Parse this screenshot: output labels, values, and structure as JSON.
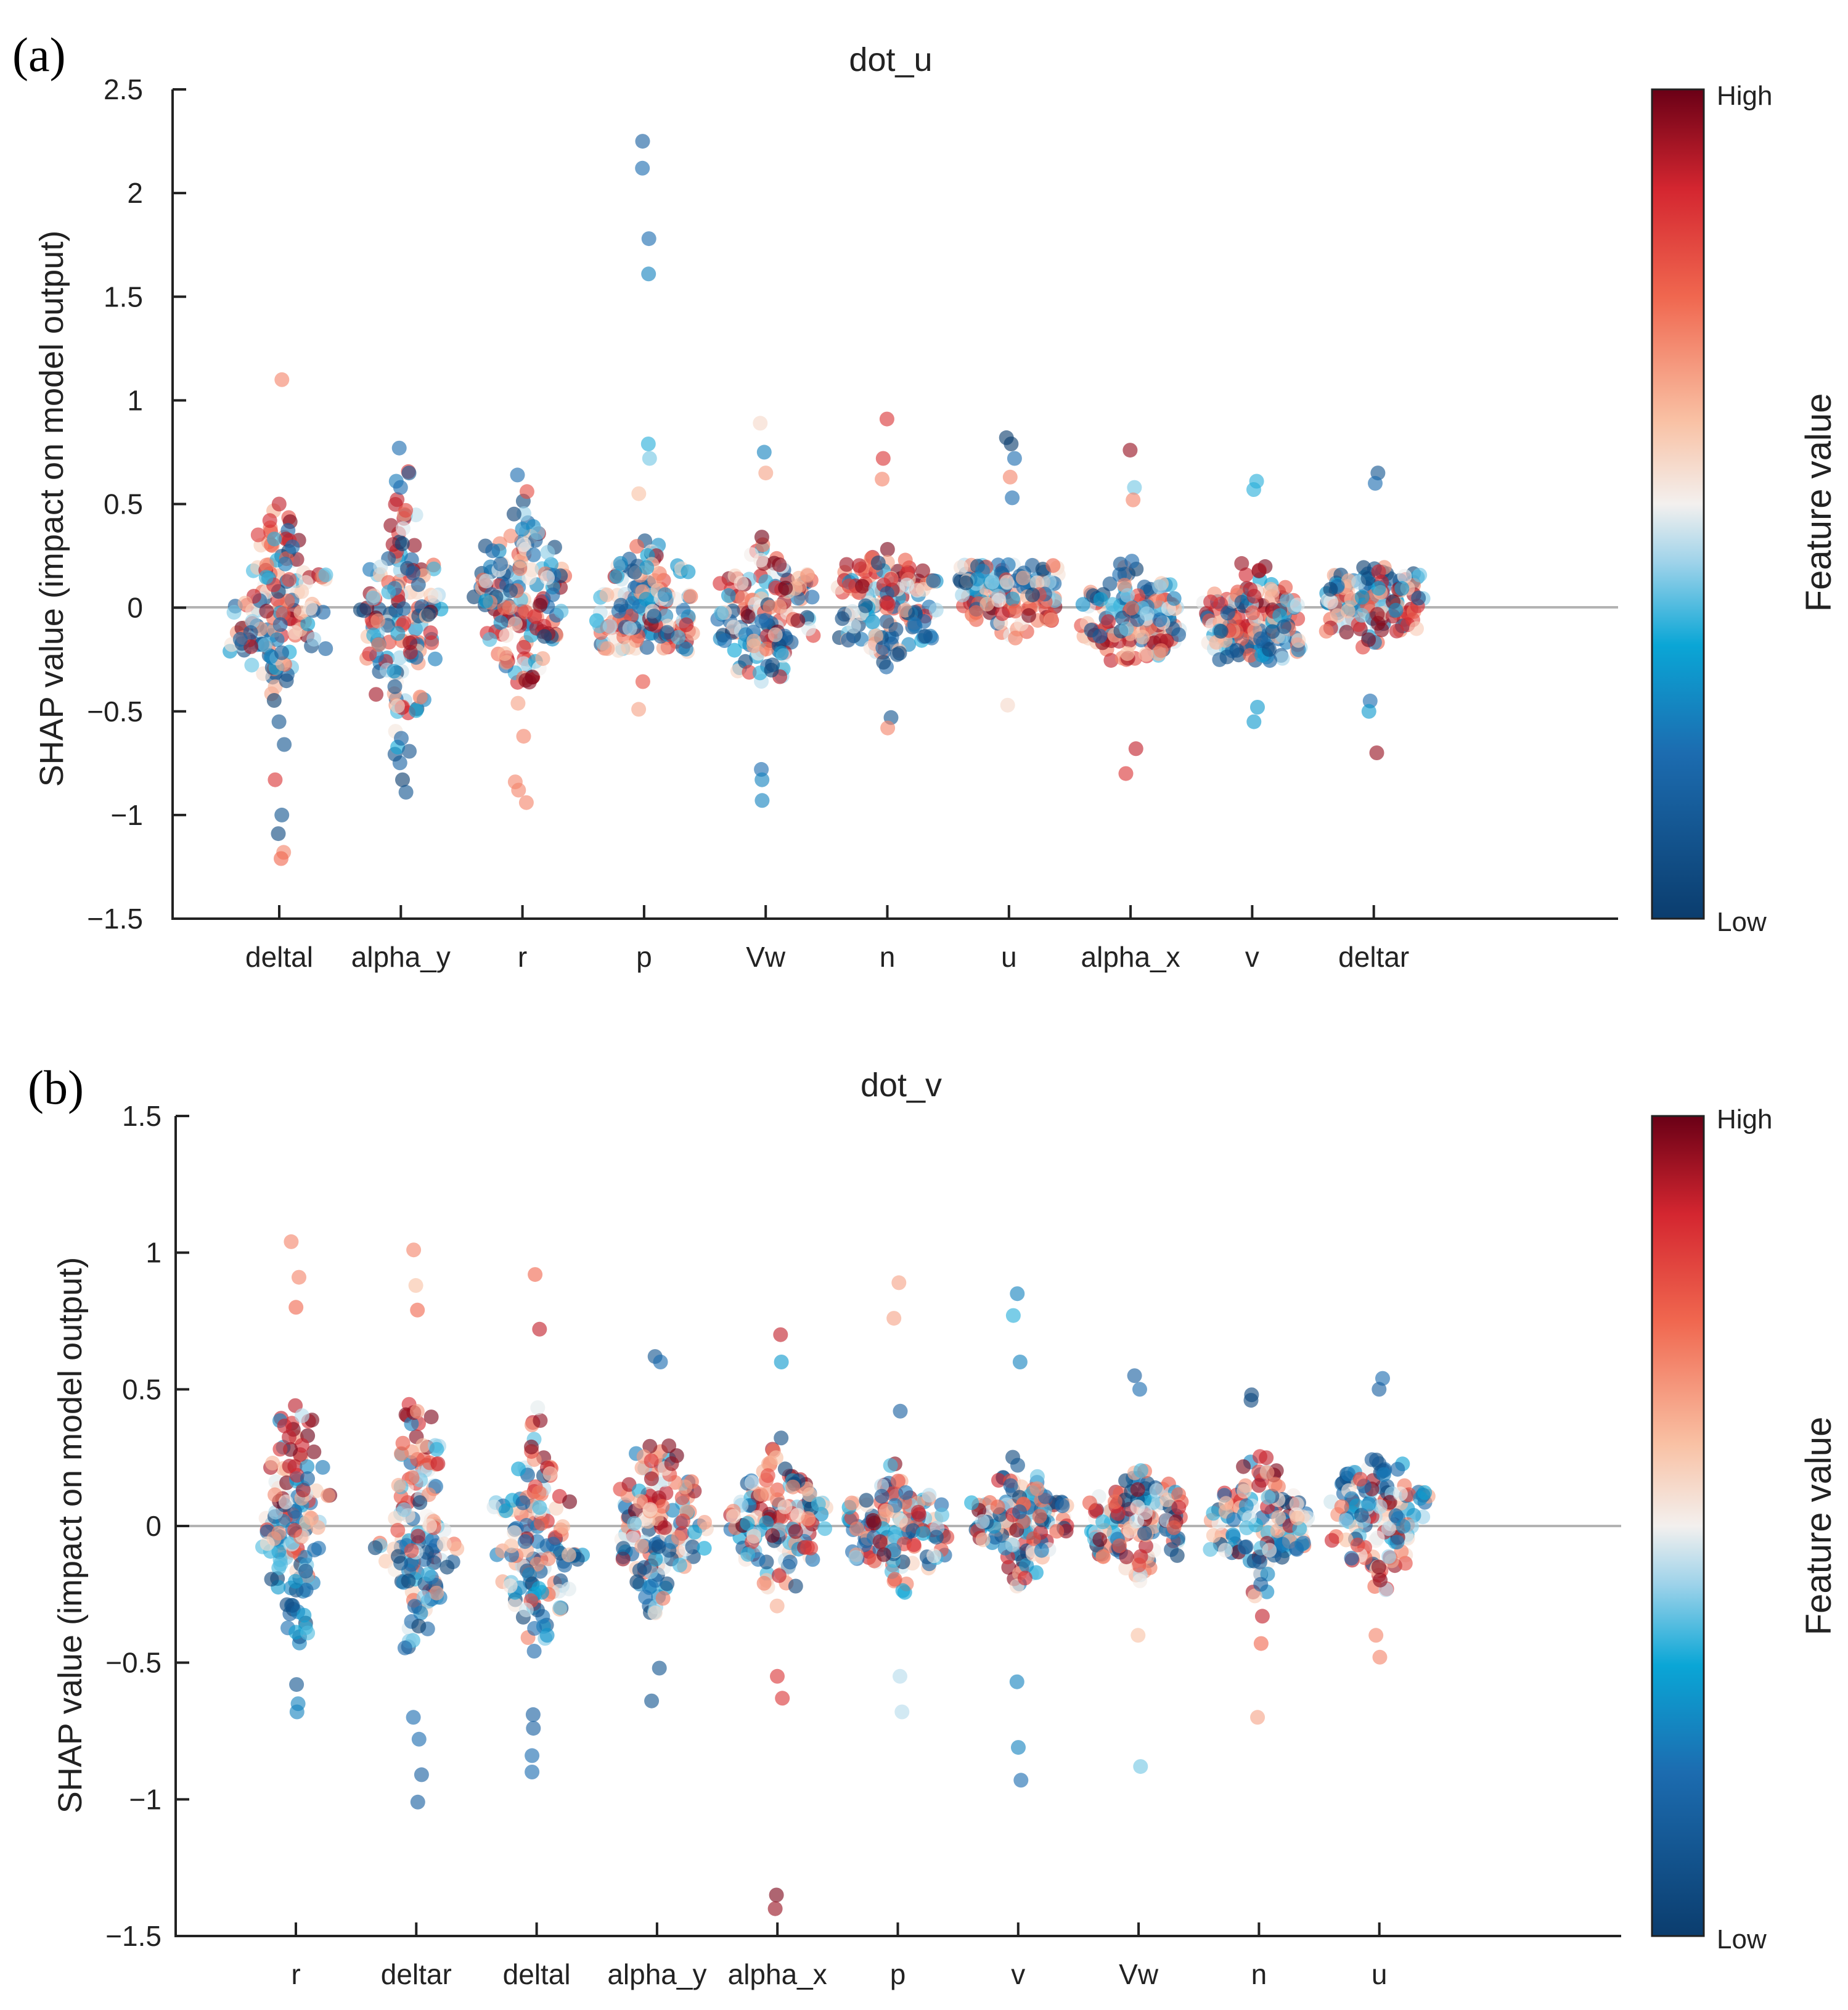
{
  "chart_data": [
    {
      "type": "scatter",
      "panel_label": "(a)",
      "title": "dot_u",
      "xlabel": "",
      "ylabel": "SHAP value (impact on model output)",
      "ylim": [
        -1.5,
        2.5
      ],
      "yticks": [
        -1.5,
        -1,
        -0.5,
        0,
        0.5,
        1,
        1.5,
        2,
        2.5
      ],
      "ytick_labels": [
        "−1.5",
        "−1",
        "−0.5",
        "0",
        "0.5",
        "1",
        "1.5",
        "2",
        "2.5"
      ],
      "zero_line": true,
      "grid": false,
      "colorbar": {
        "label": "Feature value",
        "high": "High",
        "low": "Low"
      },
      "categories": [
        "deltal",
        "alpha_y",
        "r",
        "p",
        "Vw",
        "n",
        "u",
        "alpha_x",
        "v",
        "deltar"
      ],
      "series": [
        {
          "category": "deltal",
          "core_halfwidth": 0.19,
          "high_mean": 0.22,
          "low_mean": -0.28,
          "outliers": [
            [
              1.1,
              0.7
            ],
            [
              0.5,
              0.9
            ],
            [
              -0.55,
              0.1
            ],
            [
              -0.66,
              0.1
            ],
            [
              -0.83,
              0.85
            ],
            [
              -1.0,
              0.1
            ],
            [
              -1.09,
              0.05
            ],
            [
              -1.18,
              0.7
            ],
            [
              -1.21,
              0.75
            ]
          ]
        },
        {
          "category": "alpha_y",
          "core_halfwidth": 0.3,
          "high_mean": -0.05,
          "low_mean": -0.1,
          "outliers": [
            [
              0.77,
              0.2
            ],
            [
              0.65,
              0.1
            ],
            [
              0.58,
              0.2
            ],
            [
              -0.63,
              0.15
            ],
            [
              -0.83,
              0.0
            ],
            [
              -0.89,
              0.1
            ]
          ]
        },
        {
          "category": "r",
          "core_halfwidth": 0.2,
          "high_mean": -0.15,
          "low_mean": 0.25,
          "outliers": [
            [
              0.64,
              0.2
            ],
            [
              0.56,
              0.8
            ],
            [
              -0.62,
              0.7
            ],
            [
              -0.84,
              0.7
            ],
            [
              -0.88,
              0.7
            ],
            [
              -0.94,
              0.7
            ]
          ]
        },
        {
          "category": "p",
          "core_halfwidth": 0.14,
          "high_mean": -0.08,
          "low_mean": 0.1,
          "outliers": [
            [
              2.25,
              0.15
            ],
            [
              2.12,
              0.2
            ],
            [
              1.78,
              0.2
            ],
            [
              1.61,
              0.25
            ],
            [
              0.79,
              0.35
            ],
            [
              0.72,
              0.4
            ],
            [
              0.55,
              0.6
            ],
            [
              -0.49,
              0.65
            ]
          ]
        },
        {
          "category": "Vw",
          "core_halfwidth": 0.14,
          "high_mean": 0.05,
          "low_mean": -0.15,
          "outliers": [
            [
              0.89,
              0.55
            ],
            [
              0.75,
              0.25
            ],
            [
              0.65,
              0.65
            ],
            [
              -0.78,
              0.2
            ],
            [
              -0.83,
              0.25
            ],
            [
              -0.93,
              0.25
            ]
          ]
        },
        {
          "category": "n",
          "core_halfwidth": 0.12,
          "high_mean": 0.15,
          "low_mean": -0.15,
          "outliers": [
            [
              0.91,
              0.85
            ],
            [
              0.72,
              0.85
            ],
            [
              0.62,
              0.7
            ],
            [
              -0.53,
              0.1
            ],
            [
              -0.58,
              0.7
            ]
          ]
        },
        {
          "category": "u",
          "core_halfwidth": 0.08,
          "high_mean": -0.02,
          "low_mean": 0.25,
          "outliers": [
            [
              0.82,
              0.0
            ],
            [
              0.79,
              0.0
            ],
            [
              0.72,
              0.2
            ],
            [
              0.63,
              0.7
            ],
            [
              0.53,
              0.2
            ],
            [
              -0.47,
              0.55
            ]
          ]
        },
        {
          "category": "alpha_x",
          "core_halfwidth": 0.1,
          "high_mean": -0.2,
          "low_mean": 0.03,
          "outliers": [
            [
              0.76,
              0.95
            ],
            [
              0.58,
              0.4
            ],
            [
              0.52,
              0.7
            ],
            [
              -0.68,
              0.9
            ],
            [
              -0.8,
              0.85
            ]
          ]
        },
        {
          "category": "v",
          "core_halfwidth": 0.1,
          "high_mean": 0.0,
          "low_mean": -0.18,
          "outliers": [
            [
              0.61,
              0.35
            ],
            [
              0.57,
              0.35
            ],
            [
              -0.48,
              0.3
            ],
            [
              -0.55,
              0.3
            ]
          ]
        },
        {
          "category": "deltar",
          "core_halfwidth": 0.08,
          "high_mean": -0.05,
          "low_mean": 0.15,
          "outliers": [
            [
              0.65,
              0.1
            ],
            [
              0.6,
              0.2
            ],
            [
              -0.45,
              0.2
            ],
            [
              -0.5,
              0.3
            ],
            [
              -0.7,
              0.95
            ]
          ]
        }
      ]
    },
    {
      "type": "scatter",
      "panel_label": "(b)",
      "title": "dot_v",
      "xlabel": "",
      "ylabel": "SHAP value (impact on model output)",
      "ylim": [
        -1.5,
        1.5
      ],
      "yticks": [
        -1.5,
        -1,
        -0.5,
        0,
        0.5,
        1,
        1.5
      ],
      "ytick_labels": [
        "−1.5",
        "−1",
        "−0.5",
        "0",
        "0.5",
        "1",
        "1.5"
      ],
      "zero_line": true,
      "grid": false,
      "colorbar": {
        "label": "Feature value",
        "high": "High",
        "low": "Low"
      },
      "categories": [
        "r",
        "deltar",
        "deltal",
        "alpha_y",
        "alpha_x",
        "p",
        "v",
        "Vw",
        "n",
        "u"
      ],
      "series": [
        {
          "category": "r",
          "core_halfwidth": 0.18,
          "high_mean": 0.35,
          "low_mean": -0.28,
          "outliers": [
            [
              1.04,
              0.7
            ],
            [
              0.91,
              0.7
            ],
            [
              0.8,
              0.75
            ],
            [
              -0.58,
              0.1
            ],
            [
              -0.65,
              0.25
            ],
            [
              -0.68,
              0.25
            ]
          ]
        },
        {
          "category": "deltar",
          "core_halfwidth": 0.18,
          "high_mean": 0.3,
          "low_mean": -0.25,
          "outliers": [
            [
              1.01,
              0.7
            ],
            [
              0.88,
              0.6
            ],
            [
              0.79,
              0.75
            ],
            [
              -0.7,
              0.2
            ],
            [
              -0.78,
              0.2
            ],
            [
              -0.91,
              0.15
            ],
            [
              -1.01,
              0.15
            ]
          ]
        },
        {
          "category": "deltal",
          "core_halfwidth": 0.18,
          "high_mean": 0.15,
          "low_mean": -0.25,
          "outliers": [
            [
              0.92,
              0.75
            ],
            [
              0.72,
              0.9
            ],
            [
              -0.69,
              0.15
            ],
            [
              -0.74,
              0.15
            ],
            [
              -0.84,
              0.2
            ],
            [
              -0.9,
              0.2
            ]
          ]
        },
        {
          "category": "alpha_y",
          "core_halfwidth": 0.14,
          "high_mean": 0.15,
          "low_mean": -0.15,
          "outliers": [
            [
              0.62,
              0.1
            ],
            [
              0.6,
              0.2
            ],
            [
              -0.64,
              0.1
            ],
            [
              -0.52,
              0.1
            ]
          ]
        },
        {
          "category": "alpha_x",
          "core_halfwidth": 0.13,
          "high_mean": 0.05,
          "low_mean": 0.0,
          "outliers": [
            [
              0.7,
              0.9
            ],
            [
              0.6,
              0.3
            ],
            [
              -1.35,
              0.98
            ],
            [
              -1.4,
              0.95
            ],
            [
              -0.63,
              0.85
            ],
            [
              -0.55,
              0.85
            ]
          ]
        },
        {
          "category": "p",
          "core_halfwidth": 0.1,
          "high_mean": 0.05,
          "low_mean": -0.05,
          "outliers": [
            [
              0.89,
              0.65
            ],
            [
              0.76,
              0.65
            ],
            [
              0.42,
              0.15
            ],
            [
              -0.55,
              0.45
            ],
            [
              -0.68,
              0.45
            ]
          ]
        },
        {
          "category": "v",
          "core_halfwidth": 0.1,
          "high_mean": 0.0,
          "low_mean": 0.05,
          "outliers": [
            [
              0.85,
              0.25
            ],
            [
              0.77,
              0.35
            ],
            [
              0.6,
              0.25
            ],
            [
              -0.57,
              0.25
            ],
            [
              -0.81,
              0.25
            ],
            [
              -0.93,
              0.2
            ]
          ]
        },
        {
          "category": "Vw",
          "core_halfwidth": 0.1,
          "high_mean": 0.0,
          "low_mean": 0.05,
          "outliers": [
            [
              0.55,
              0.15
            ],
            [
              0.5,
              0.2
            ],
            [
              -0.4,
              0.6
            ],
            [
              -0.88,
              0.4
            ]
          ]
        },
        {
          "category": "n",
          "core_halfwidth": 0.1,
          "high_mean": 0.05,
          "low_mean": -0.05,
          "outliers": [
            [
              0.48,
              0.05
            ],
            [
              0.46,
              0.05
            ],
            [
              0.25,
              0.9
            ],
            [
              -0.33,
              0.9
            ],
            [
              -0.43,
              0.75
            ],
            [
              -0.7,
              0.65
            ]
          ]
        },
        {
          "category": "u",
          "core_halfwidth": 0.1,
          "high_mean": -0.12,
          "low_mean": 0.2,
          "outliers": [
            [
              0.54,
              0.2
            ],
            [
              0.5,
              0.15
            ],
            [
              -0.4,
              0.7
            ],
            [
              -0.48,
              0.7
            ]
          ]
        }
      ]
    }
  ]
}
